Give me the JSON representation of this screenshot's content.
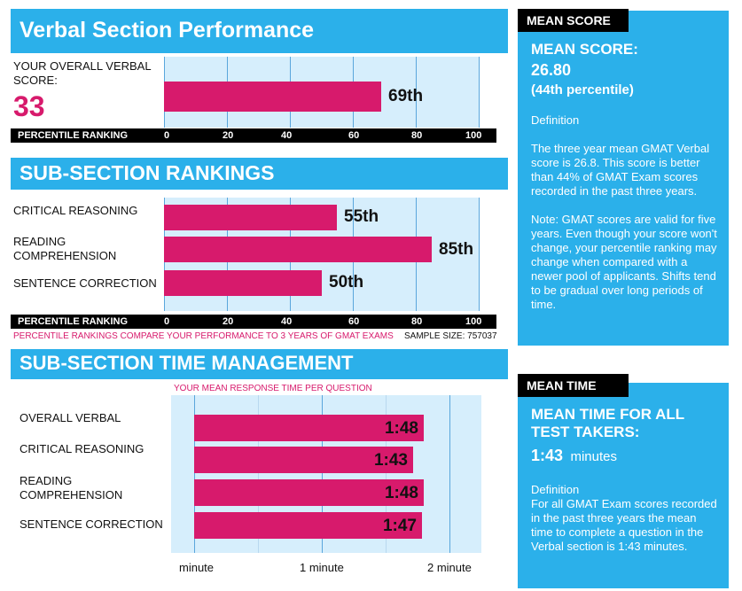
{
  "verbal": {
    "title": "Verbal Section Performance",
    "score_label": "YOUR OVERALL VERBAL SCORE:",
    "score": "33",
    "percentile": "69th",
    "axis_label": "PERCENTILE RANKING"
  },
  "subsections": {
    "title": "SUB-SECTION RANKINGS",
    "axis_label": "PERCENTILE RANKING",
    "footnote": "PERCENTILE RANKINGS COMPARE YOUR PERFORMANCE TO 3 YEARS OF GMAT EXAMS",
    "sample_size": "SAMPLE SIZE: 757037",
    "items": [
      {
        "label": "CRITICAL REASONING",
        "value_label": "55th"
      },
      {
        "label": "READING COMPREHENSION",
        "value_label": "85th"
      },
      {
        "label": "SENTENCE CORRECTION",
        "value_label": "50th"
      }
    ]
  },
  "time": {
    "title": "SUB-SECTION TIME MANAGEMENT",
    "caption": "YOUR MEAN RESPONSE TIME PER QUESTION",
    "items": [
      {
        "label": "OVERALL VERBAL",
        "value_label": "1:48"
      },
      {
        "label": "CRITICAL REASONING",
        "value_label": "1:43"
      },
      {
        "label": "READING COMPREHENSION",
        "value_label": "1:48"
      },
      {
        "label": "SENTENCE CORRECTION",
        "value_label": "1:47"
      }
    ],
    "axis_ticks": [
      "minute",
      "1 minute",
      "2 minute"
    ]
  },
  "mean_score_panel": {
    "tab": "MEAN SCORE",
    "heading": "MEAN SCORE:",
    "score": "26.80",
    "percentile": "(44th percentile)",
    "def_label": "Definition",
    "def_text": "The three year mean GMAT Verbal  score is 26.8. This score is better than 44% of GMAT Exam scores recorded in the past three years.",
    "note_text": "Note:  GMAT scores are valid for five years. Even though your score won't change, your percentile ranking may change when compared with a newer pool of applicants.  Shifts tend to be gradual over long periods of time."
  },
  "mean_time_panel": {
    "tab": "MEAN TIME",
    "heading": "MEAN TIME FOR ALL TEST TAKERS:",
    "value": "1:43",
    "unit": "minutes",
    "def_label": "Definition",
    "def_text": "For all GMAT Exam scores recorded in the past three years the mean time to complete a question in the Verbal section is 1:43 minutes."
  },
  "colors": {
    "accent": "#2bb0ea",
    "bar": "#d71a6c",
    "score": "#d71a6c",
    "chart_bg": "#d6eefc"
  },
  "chart_data": [
    {
      "type": "bar",
      "orientation": "horizontal",
      "title": "Verbal Section Performance",
      "categories": [
        "Overall Verbal"
      ],
      "values": [
        69
      ],
      "xlabel": "PERCENTILE RANKING",
      "xlim": [
        0,
        100
      ],
      "xticks": [
        0,
        20,
        40,
        60,
        80,
        100
      ]
    },
    {
      "type": "bar",
      "orientation": "horizontal",
      "title": "SUB-SECTION RANKINGS",
      "categories": [
        "CRITICAL REASONING",
        "READING COMPREHENSION",
        "SENTENCE CORRECTION"
      ],
      "values": [
        55,
        85,
        50
      ],
      "xlabel": "PERCENTILE RANKING",
      "xlim": [
        0,
        100
      ],
      "xticks": [
        0,
        20,
        40,
        60,
        80,
        100
      ]
    },
    {
      "type": "bar",
      "orientation": "horizontal",
      "title": "SUB-SECTION TIME MANAGEMENT",
      "categories": [
        "OVERALL VERBAL",
        "CRITICAL REASONING",
        "READING COMPREHENSION",
        "SENTENCE CORRECTION"
      ],
      "values_seconds": [
        108,
        103,
        108,
        107
      ],
      "value_labels": [
        "1:48",
        "1:43",
        "1:48",
        "1:47"
      ],
      "xlim_seconds": [
        0,
        120
      ]
    }
  ]
}
